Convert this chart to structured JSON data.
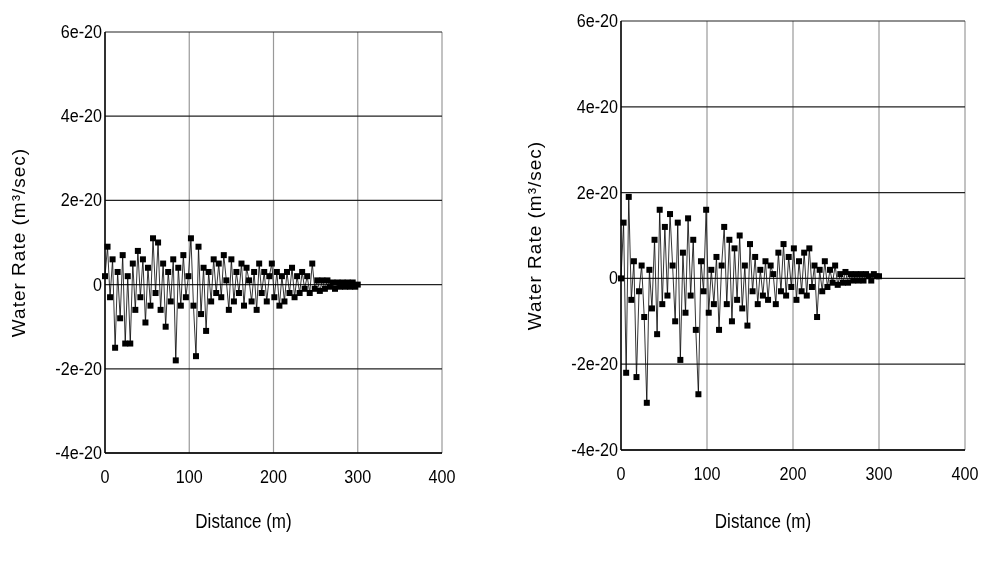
{
  "chart_data": [
    {
      "type": "line",
      "xlabel": "Distance (m)",
      "ylabel": "Water Rate (m³/sec)",
      "xlim": [
        0,
        400
      ],
      "xticks": [
        0,
        100,
        200,
        300,
        400
      ],
      "ylim": [
        -4e-20,
        6e-20
      ],
      "yticks": [
        -4e-20,
        -2e-20,
        0,
        2e-20,
        4e-20,
        6e-20
      ],
      "grid": true,
      "marker": "square",
      "line_style": "solid",
      "x": [
        0,
        3,
        6,
        9,
        12,
        15,
        18,
        21,
        24,
        27,
        30,
        33,
        36,
        39,
        42,
        45,
        48,
        51,
        54,
        57,
        60,
        63,
        66,
        69,
        72,
        75,
        78,
        81,
        84,
        87,
        90,
        93,
        96,
        99,
        102,
        105,
        108,
        111,
        114,
        117,
        120,
        123,
        126,
        129,
        132,
        135,
        138,
        141,
        144,
        147,
        150,
        153,
        156,
        159,
        162,
        165,
        168,
        171,
        174,
        177,
        180,
        183,
        186,
        189,
        192,
        195,
        198,
        201,
        204,
        207,
        210,
        213,
        216,
        219,
        222,
        225,
        228,
        231,
        234,
        237,
        240,
        243,
        246,
        249,
        252,
        255,
        258,
        261,
        264,
        267,
        270,
        273,
        276,
        279,
        282,
        285,
        288,
        291,
        294,
        297,
        300
      ],
      "series": [
        {
          "color": "#000000",
          "values": [
            2e-21,
            9e-21,
            -3e-21,
            6e-21,
            -1.5e-20,
            3e-21,
            -8e-21,
            7e-21,
            -1.4e-20,
            2e-21,
            -1.4e-20,
            5e-21,
            -6e-21,
            8e-21,
            -3e-21,
            6e-21,
            -9e-21,
            4e-21,
            -5e-21,
            1.1e-20,
            -2e-21,
            1e-20,
            -6e-21,
            5e-21,
            -1e-20,
            3e-21,
            -4e-21,
            6e-21,
            -1.8e-20,
            4e-21,
            -5e-21,
            7e-21,
            -3e-21,
            2e-21,
            1.1e-20,
            -5e-21,
            -1.7e-20,
            9e-21,
            -7e-21,
            4e-21,
            -1.1e-20,
            3e-21,
            -4e-21,
            6e-21,
            -2e-21,
            5e-21,
            -3e-21,
            7e-21,
            1e-21,
            -6e-21,
            6e-21,
            -4e-21,
            3e-21,
            -2e-21,
            5e-21,
            -5e-21,
            4e-21,
            1e-21,
            -4e-21,
            3e-21,
            -6e-21,
            5e-21,
            -2e-21,
            3e-21,
            -4e-21,
            2e-21,
            5e-21,
            -3e-21,
            3e-21,
            -5e-21,
            2e-21,
            -4e-21,
            3e-21,
            -2e-21,
            4e-21,
            -3e-21,
            2e-21,
            -2e-21,
            3e-21,
            -1e-21,
            2e-21,
            -2e-21,
            5e-21,
            -1e-21,
            1e-21,
            -1.5e-21,
            1e-21,
            -1e-21,
            1e-21,
            -5e-22,
            5e-22,
            -1e-21,
            5e-22,
            -5e-22,
            5e-22,
            -5e-22,
            5e-22,
            -5e-22,
            5e-22,
            -5e-22,
            0
          ]
        }
      ]
    },
    {
      "type": "line",
      "xlabel": "Distance (m)",
      "ylabel": "Water Rate (m³/sec)",
      "xlim": [
        0,
        400
      ],
      "xticks": [
        0,
        100,
        200,
        300,
        400
      ],
      "ylim": [
        -4e-20,
        6e-20
      ],
      "yticks": [
        -4e-20,
        -2e-20,
        0,
        2e-20,
        4e-20,
        6e-20
      ],
      "grid": true,
      "marker": "square",
      "line_style": "solid",
      "x": [
        0,
        3,
        6,
        9,
        12,
        15,
        18,
        21,
        24,
        27,
        30,
        33,
        36,
        39,
        42,
        45,
        48,
        51,
        54,
        57,
        60,
        63,
        66,
        69,
        72,
        75,
        78,
        81,
        84,
        87,
        90,
        93,
        96,
        99,
        102,
        105,
        108,
        111,
        114,
        117,
        120,
        123,
        126,
        129,
        132,
        135,
        138,
        141,
        144,
        147,
        150,
        153,
        156,
        159,
        162,
        165,
        168,
        171,
        174,
        177,
        180,
        183,
        186,
        189,
        192,
        195,
        198,
        201,
        204,
        207,
        210,
        213,
        216,
        219,
        222,
        225,
        228,
        231,
        234,
        237,
        240,
        243,
        246,
        249,
        252,
        255,
        258,
        261,
        264,
        267,
        270,
        273,
        276,
        279,
        282,
        285,
        288,
        291,
        294,
        297,
        300
      ],
      "series": [
        {
          "color": "#000000",
          "values": [
            0,
            1.3e-20,
            -2.2e-20,
            1.9e-20,
            -5e-21,
            4e-21,
            -2.3e-20,
            -3e-21,
            3e-21,
            -9e-21,
            -2.9e-20,
            2e-21,
            -7e-21,
            9e-21,
            -1.3e-20,
            1.6e-20,
            -6e-21,
            1.2e-20,
            -4e-21,
            1.5e-20,
            3e-21,
            -1e-20,
            1.3e-20,
            -1.9e-20,
            6e-21,
            -8e-21,
            1.4e-20,
            -4e-21,
            9e-21,
            -1.2e-20,
            -2.7e-20,
            4e-21,
            -3e-21,
            1.6e-20,
            -8e-21,
            2e-21,
            -6e-21,
            5e-21,
            -1.2e-20,
            3e-21,
            1.2e-20,
            -6e-21,
            9e-21,
            -1e-20,
            7e-21,
            -5e-21,
            1e-20,
            -7e-21,
            3e-21,
            -1.1e-20,
            8e-21,
            -3e-21,
            5e-21,
            -6e-21,
            2e-21,
            -4e-21,
            4e-21,
            -5e-21,
            3e-21,
            1e-21,
            -6e-21,
            6e-21,
            -3e-21,
            8e-21,
            -4e-21,
            5e-21,
            -2e-21,
            7e-21,
            -5e-21,
            4e-21,
            -3e-21,
            6e-21,
            -4e-21,
            7e-21,
            -2e-21,
            3e-21,
            -9e-21,
            2e-21,
            -3e-21,
            4e-21,
            -2e-21,
            2e-21,
            -1e-21,
            3e-21,
            -1.5e-21,
            1e-21,
            -1e-21,
            1.5e-21,
            -1e-21,
            1e-21,
            -5e-22,
            1e-21,
            -5e-22,
            1e-21,
            -5e-22,
            1e-21,
            5e-22,
            -5e-22,
            1e-21,
            5e-22,
            5e-22
          ]
        }
      ]
    }
  ]
}
